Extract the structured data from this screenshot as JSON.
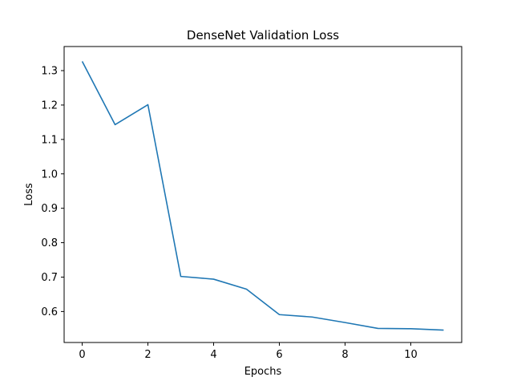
{
  "chart_data": {
    "type": "line",
    "title": "DenseNet Validation Loss",
    "xlabel": "Epochs",
    "ylabel": "Loss",
    "xlim": [
      -0.55,
      11.55
    ],
    "ylim": [
      0.51,
      1.37
    ],
    "x_ticks": [
      0,
      2,
      4,
      6,
      8,
      10
    ],
    "y_ticks": [
      0.6,
      0.7,
      0.8,
      0.9,
      1.0,
      1.1,
      1.2,
      1.3
    ],
    "grid": false,
    "series": [
      {
        "color": "#1f77b4",
        "x": [
          0,
          1,
          2,
          3,
          4,
          5,
          6,
          7,
          8,
          9,
          10,
          11
        ],
        "y": [
          1.327,
          1.143,
          1.201,
          0.702,
          0.694,
          0.665,
          0.591,
          0.584,
          0.568,
          0.551,
          0.55,
          0.546
        ]
      }
    ]
  }
}
